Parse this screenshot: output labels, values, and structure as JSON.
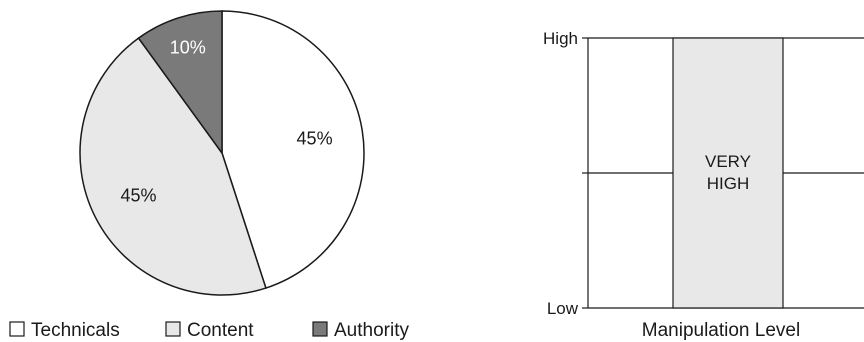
{
  "chart_data": [
    {
      "type": "pie",
      "categories": [
        "Technicals",
        "Content",
        "Authority"
      ],
      "values": [
        45,
        45,
        10
      ],
      "labels": [
        "45%",
        "45%",
        "10%"
      ],
      "colors": [
        "#ffffff",
        "#e8e8e8",
        "#7a7a7a"
      ],
      "label_colors": [
        "#1a1a1a",
        "#1a1a1a",
        "#ffffff"
      ],
      "legend": {
        "placement": "bottom",
        "items": [
          {
            "name": "Technicals",
            "color": "#ffffff"
          },
          {
            "name": "Content",
            "color": "#e8e8e8"
          },
          {
            "name": "Authority",
            "color": "#7a7a7a"
          }
        ]
      }
    },
    {
      "type": "bar",
      "categories": [
        "VERY HIGH"
      ],
      "bar_label_lines": [
        "VERY",
        "HIGH"
      ],
      "values": [
        1
      ],
      "ylim": [
        0,
        1
      ],
      "yticks": [
        {
          "value": 1,
          "label": "High"
        },
        {
          "value": 0.5,
          "label": ""
        },
        {
          "value": 0,
          "label": "Low"
        }
      ],
      "xlabel": "Manipulation Level",
      "ylabel": "",
      "grid": true,
      "bar_color": "#e8e8e8"
    }
  ]
}
